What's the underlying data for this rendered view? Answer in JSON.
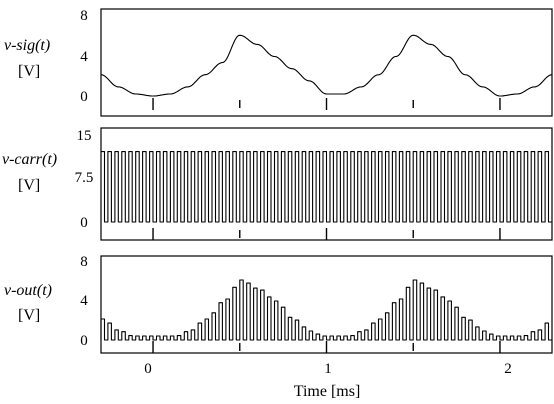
{
  "chart_data": [
    {
      "type": "line",
      "ylabel": "v-sig(t)",
      "yunit": "[V]",
      "ylim": [
        0,
        8
      ],
      "yticks": [
        "0",
        "4",
        "8"
      ],
      "xlim": [
        -0.3,
        2.3
      ],
      "series": [
        {
          "x": [
            -0.3,
            -0.2,
            -0.1,
            0.0,
            0.1,
            0.2,
            0.3,
            0.4,
            0.5,
            0.6,
            0.7,
            0.8,
            0.9,
            1.0,
            1.1,
            1.2,
            1.3,
            1.4,
            1.5,
            1.6,
            1.7,
            1.8,
            1.9,
            2.0,
            2.1,
            2.2,
            2.3
          ],
          "y": [
            2.1,
            0.9,
            0.2,
            0.0,
            0.2,
            0.9,
            2.1,
            3.3,
            6.0,
            5.1,
            3.9,
            2.7,
            1.5,
            0.2,
            0.2,
            0.9,
            2.1,
            3.9,
            6.0,
            5.1,
            3.9,
            2.1,
            0.9,
            0.0,
            0.2,
            0.9,
            2.1
          ]
        }
      ]
    },
    {
      "type": "line",
      "ylabel": "v-carr(t)",
      "yunit": "[V]",
      "ylim": [
        0,
        15
      ],
      "yticks": [
        "0",
        "7.5",
        "15"
      ],
      "xlim": [
        -0.3,
        2.3
      ],
      "series": [
        {
          "x": [
            -0.3,
            2.3
          ],
          "y_low": 0,
          "y_high": 12,
          "pulse_period_ms": 0.04
        }
      ]
    },
    {
      "type": "line",
      "ylabel": "v-out(t)",
      "yunit": "[V]",
      "ylim": [
        0,
        8
      ],
      "yticks": [
        "0",
        "4",
        "8"
      ],
      "xlim": [
        -0.3,
        2.3
      ],
      "xlabel": "Time [ms]",
      "xticks": [
        "0",
        "1",
        "2"
      ],
      "series": [
        {
          "x": [
            -0.3,
            -0.2,
            -0.1,
            0.0,
            0.1,
            0.2,
            0.3,
            0.4,
            0.5,
            0.6,
            0.7,
            0.8,
            0.9,
            1.0,
            1.1,
            1.2,
            1.3,
            1.4,
            1.5,
            1.6,
            1.7,
            1.8,
            1.9,
            2.0,
            2.1,
            2.2,
            2.3
          ],
          "y_envelope": [
            2.1,
            0.9,
            0.2,
            0.0,
            0.2,
            0.9,
            2.1,
            3.9,
            6.0,
            5.1,
            3.9,
            2.1,
            0.9,
            0.0,
            0.2,
            0.9,
            2.1,
            3.9,
            6.0,
            5.1,
            3.9,
            2.1,
            0.9,
            0.0,
            0.2,
            0.9,
            2.1
          ]
        }
      ]
    }
  ]
}
